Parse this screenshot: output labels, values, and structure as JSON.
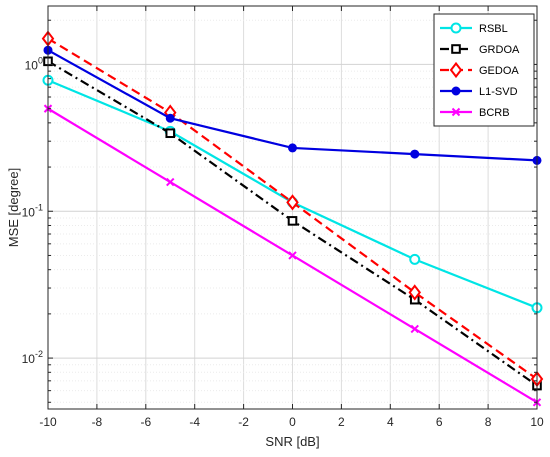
{
  "chart_data": {
    "type": "line",
    "title": "",
    "xlabel": "SNR [dB]",
    "ylabel": "MSE [degree]",
    "xlim": [
      -10,
      10
    ],
    "xticks": [
      -10,
      -8,
      -6,
      -4,
      -2,
      0,
      2,
      4,
      6,
      8,
      10
    ],
    "yscale": "log",
    "ylim": [
      0.0045,
      2.5
    ],
    "yticks": [
      {
        "value": 0.01,
        "base": "10",
        "exp": "-2"
      },
      {
        "value": 0.1,
        "base": "10",
        "exp": "-1"
      },
      {
        "value": 1,
        "base": "10",
        "exp": "0"
      }
    ],
    "grid": true,
    "legend_position": "top-right",
    "x": [
      -10,
      -5,
      0,
      5,
      10
    ],
    "series": [
      {
        "name": "RSBL",
        "color": "#00e5e5",
        "dash": "solid",
        "marker": "circle",
        "values": [
          0.78,
          0.35,
          0.115,
          0.047,
          0.022
        ]
      },
      {
        "name": "GRDOA",
        "color": "#000000",
        "dash": "dashdot",
        "marker": "square",
        "values": [
          1.05,
          0.34,
          0.086,
          0.025,
          0.0065
        ]
      },
      {
        "name": "GEDOA",
        "color": "#ff0000",
        "dash": "dashed",
        "marker": "diamond",
        "values": [
          1.5,
          0.47,
          0.115,
          0.028,
          0.0072
        ]
      },
      {
        "name": "L1-SVD",
        "color": "#0000e0",
        "dash": "solid",
        "marker": "dot",
        "values": [
          1.25,
          0.43,
          0.27,
          0.245,
          0.222
        ]
      },
      {
        "name": "BCRB",
        "color": "#ff00ff",
        "dash": "solid",
        "marker": "x",
        "values": [
          0.5,
          0.158,
          0.05,
          0.0158,
          0.005
        ]
      }
    ]
  }
}
